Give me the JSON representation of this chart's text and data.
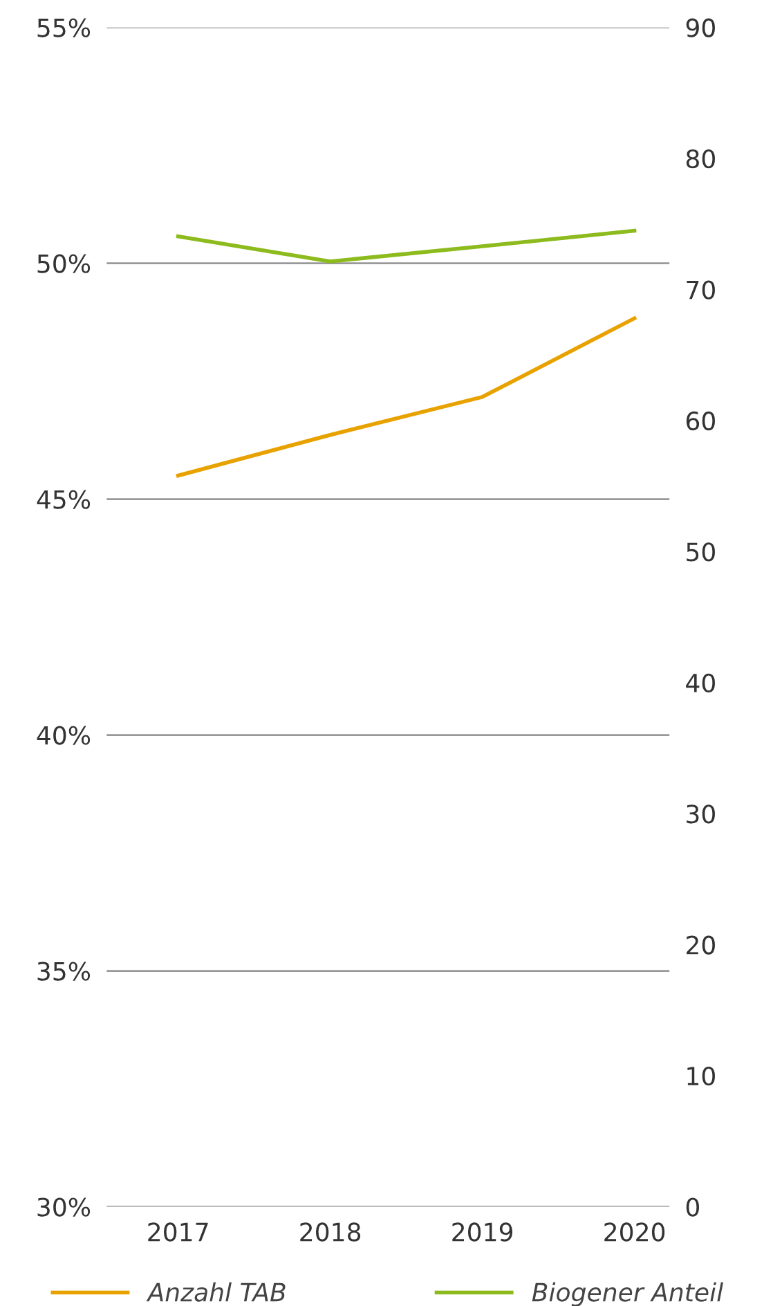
{
  "chart_data": {
    "type": "line",
    "categories": [
      "2017",
      "2018",
      "2019",
      "2020"
    ],
    "series": [
      {
        "name": "Anzahl TAB",
        "color": "#e8a200",
        "axis": "y2",
        "values": [
          55.8,
          58.9,
          61.8,
          67.8
        ]
      },
      {
        "name": "Biogener Anteil",
        "color": "#8dbb1e",
        "values": [
          50.57,
          50.04,
          50.36,
          50.69
        ]
      }
    ],
    "ylim": [
      30,
      55
    ],
    "yticks": [
      {
        "value": 30,
        "label": "30%"
      },
      {
        "value": 35,
        "label": "35%"
      },
      {
        "value": 40,
        "label": "40%"
      },
      {
        "value": 45,
        "label": "45%"
      },
      {
        "value": 50,
        "label": "50%"
      },
      {
        "value": 55,
        "label": "55%"
      }
    ],
    "y2lim": [
      0,
      90
    ],
    "y2ticks": [
      0,
      10,
      20,
      30,
      40,
      50,
      60,
      70,
      80,
      90
    ],
    "grid": "y",
    "legend": "bottom",
    "marker": "none",
    "line_style": "solid"
  }
}
